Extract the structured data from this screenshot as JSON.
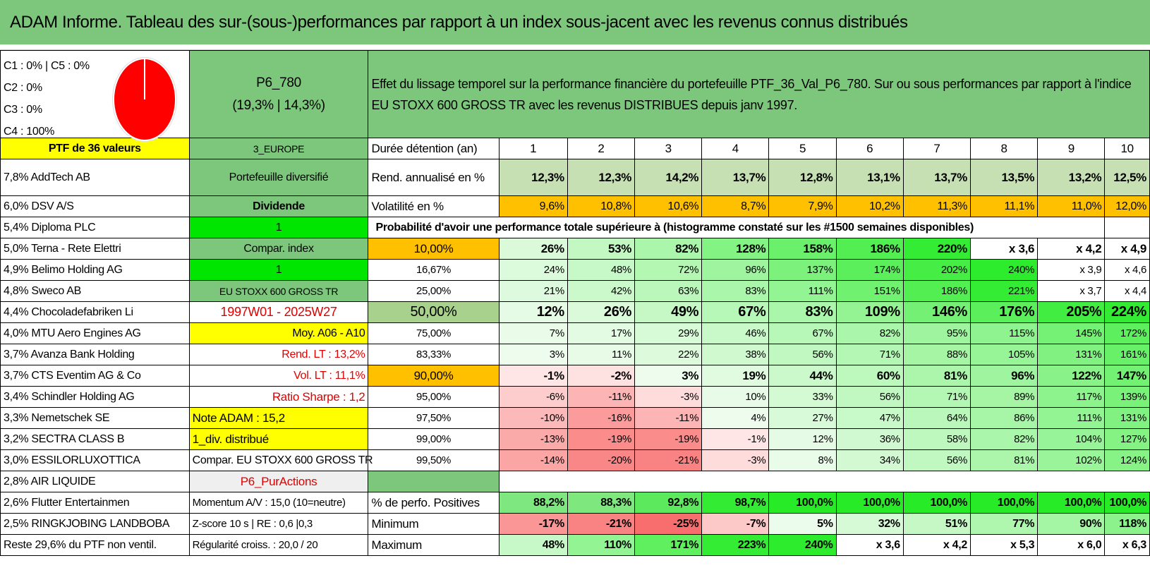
{
  "title": "ADAM Informe. Tableau des sur-(sous-)performances par rapport à un index sous-jacent avec les revenus connus distribués",
  "pie": {
    "lines": [
      "C1 : 0% | C5 : 0%",
      "C2 : 0%",
      "C3 : 0%",
      "C4 : 100%"
    ],
    "color": "#ff0000"
  },
  "portfolio": {
    "code": "P6_780",
    "perf": "(19,3% | 14,3%)"
  },
  "description": "Effet du lissage temporel sur la performance financière du portefeuille PTF_36_Val_P6_780. Sur ou sous performances par rapport à l'indice EU STOXX 600 GROSS TR avec les revenus DISTRIBUES depuis janv 1997.",
  "header_row": {
    "left": "PTF de 36 valeurs",
    "mid": "3_EUROPE",
    "label": "Durée détention (an)",
    "years": [
      "1",
      "2",
      "3",
      "4",
      "5",
      "6",
      "7",
      "8",
      "9",
      "10"
    ]
  },
  "rend": {
    "label": "Rend. annualisé en %",
    "values": [
      "12,3%",
      "12,3%",
      "14,2%",
      "13,7%",
      "12,8%",
      "13,1%",
      "13,7%",
      "13,5%",
      "13,2%",
      "12,5%"
    ]
  },
  "vol": {
    "label": "Volatilité en %",
    "values": [
      "9,6%",
      "10,8%",
      "10,6%",
      "8,7%",
      "7,9%",
      "10,2%",
      "11,3%",
      "11,1%",
      "11,0%",
      "12,0%"
    ]
  },
  "prob_title": "Probabilité d'avoir une performance totale supérieure à (histogramme constaté sur les #1500 semaines disponibles)",
  "holdings": [
    "7,8% AddTech AB",
    "6,0% DSV A/S",
    "5,4% Diploma PLC",
    "5,0% Terna - Rete Elettri",
    "4,9% Belimo Holding AG",
    "4,8% Sweco AB",
    "4,4% Chocoladefabriken Li",
    "4,0% MTU Aero Engines AG",
    "3,7% Avanza Bank Holding",
    "3,7% CTS Eventim AG & Co",
    "3,4% Schindler Holding AG",
    "3,3% Nemetschek SE",
    "3,2% SECTRA CLASS B",
    "3,0% ESSILORLUXOTTICA",
    "2,8% AIR LIQUIDE",
    "2,6% Flutter Entertainmen",
    "2,5% RINGKJOBING LANDBOBA",
    "Reste 29,6% du PTF non ventil."
  ],
  "side": [
    "Portefeuille diversifié",
    "Dividende",
    "1",
    "Compar. index",
    "1",
    "EU STOXX 600 GROSS TR",
    "1997W01 - 2025W27",
    "Moy. A06 - A10",
    "Rend. LT : 13,2%",
    "Vol. LT : 11,1%",
    "Ratio Sharpe : 1,2",
    "Note ADAM : 15,2",
    "1_div. distribué",
    "Compar. EU STOXX 600 GROSS TR",
    "P6_PurActions",
    "Momentum A/V : 15,0 (10=neutre)",
    "Z-score 10 s | RE : 0,6 |0,3",
    "Régularité croiss. : 20,0 / 20"
  ],
  "prob_rows": [
    {
      "level": "10,00%",
      "values": [
        "26%",
        "53%",
        "82%",
        "128%",
        "158%",
        "186%",
        "220%",
        "x 3,6",
        "x 4,2",
        "x 4,9"
      ]
    },
    {
      "level": "16,67%",
      "values": [
        "24%",
        "48%",
        "72%",
        "96%",
        "137%",
        "174%",
        "202%",
        "240%",
        "x 3,9",
        "x 4,6"
      ]
    },
    {
      "level": "25,00%",
      "values": [
        "21%",
        "42%",
        "63%",
        "83%",
        "111%",
        "151%",
        "186%",
        "221%",
        "x 3,7",
        "x 4,4"
      ]
    },
    {
      "level": "50,00%",
      "values": [
        "12%",
        "26%",
        "49%",
        "67%",
        "83%",
        "109%",
        "146%",
        "176%",
        "205%",
        "224%"
      ]
    },
    {
      "level": "75,00%",
      "values": [
        "7%",
        "17%",
        "29%",
        "46%",
        "67%",
        "82%",
        "95%",
        "115%",
        "145%",
        "172%"
      ]
    },
    {
      "level": "83,33%",
      "values": [
        "3%",
        "11%",
        "22%",
        "38%",
        "56%",
        "71%",
        "88%",
        "105%",
        "131%",
        "161%"
      ]
    },
    {
      "level": "90,00%",
      "values": [
        "-1%",
        "-2%",
        "3%",
        "19%",
        "44%",
        "60%",
        "81%",
        "96%",
        "122%",
        "147%"
      ]
    },
    {
      "level": "95,00%",
      "values": [
        "-6%",
        "-11%",
        "-3%",
        "10%",
        "33%",
        "56%",
        "71%",
        "89%",
        "117%",
        "139%"
      ]
    },
    {
      "level": "97,50%",
      "values": [
        "-10%",
        "-16%",
        "-11%",
        "4%",
        "27%",
        "47%",
        "64%",
        "86%",
        "111%",
        "131%"
      ]
    },
    {
      "level": "99,00%",
      "values": [
        "-13%",
        "-19%",
        "-19%",
        "-1%",
        "12%",
        "36%",
        "58%",
        "82%",
        "104%",
        "127%"
      ]
    },
    {
      "level": "99,50%",
      "values": [
        "-14%",
        "-20%",
        "-21%",
        "-3%",
        "8%",
        "34%",
        "56%",
        "81%",
        "102%",
        "124%"
      ]
    }
  ],
  "pos": {
    "label": "% de perfo. Positives",
    "values": [
      "88,2%",
      "88,3%",
      "92,8%",
      "98,7%",
      "100,0%",
      "100,0%",
      "100,0%",
      "100,0%",
      "100,0%",
      "100,0%"
    ]
  },
  "min": {
    "label": "Minimum",
    "values": [
      "-17%",
      "-21%",
      "-25%",
      "-7%",
      "5%",
      "32%",
      "51%",
      "77%",
      "90%",
      "118%"
    ]
  },
  "max": {
    "label": "Maximum",
    "values": [
      "48%",
      "110%",
      "171%",
      "223%",
      "240%",
      "x 3,6",
      "x 4,2",
      "x 5,3",
      "x 6,0",
      "x 6,3"
    ]
  }
}
